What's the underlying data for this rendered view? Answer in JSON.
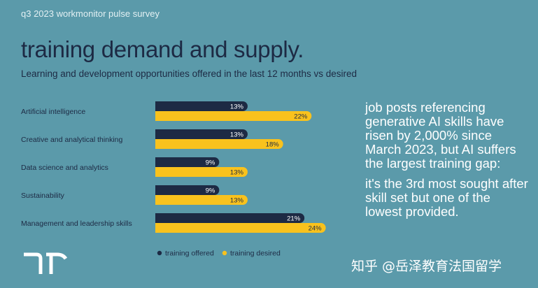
{
  "header": {
    "survey_label": "q3 2023 workmonitor pulse survey",
    "title": "training demand and supply.",
    "subtitle": "Learning and development opportunities offered in the last 12 months vs desired"
  },
  "chart_data": {
    "type": "bar",
    "orientation": "horizontal",
    "categories": [
      "Artificial intelligence",
      "Creative and analytical thinking",
      "Data science and analytics",
      "Sustainability",
      "Management and leadership skills"
    ],
    "series": [
      {
        "name": "training offered",
        "values": [
          13,
          13,
          9,
          9,
          21
        ],
        "color": "#1d2a44"
      },
      {
        "name": "training desired",
        "values": [
          22,
          18,
          13,
          13,
          24
        ],
        "color": "#f9c21d"
      }
    ],
    "value_format": "%",
    "legend_position": "bottom",
    "grid": false
  },
  "callout": {
    "paragraph1": "job posts referencing generative AI skills have risen by 2,000% since March 2023, but AI suffers the largest training gap:",
    "paragraph2": "it's the 3rd most sought after skill set but one of the lowest provided."
  },
  "logo": {
    "icon": "randstad-logo-icon"
  },
  "watermark": "知乎 @岳泽教育法国留学"
}
